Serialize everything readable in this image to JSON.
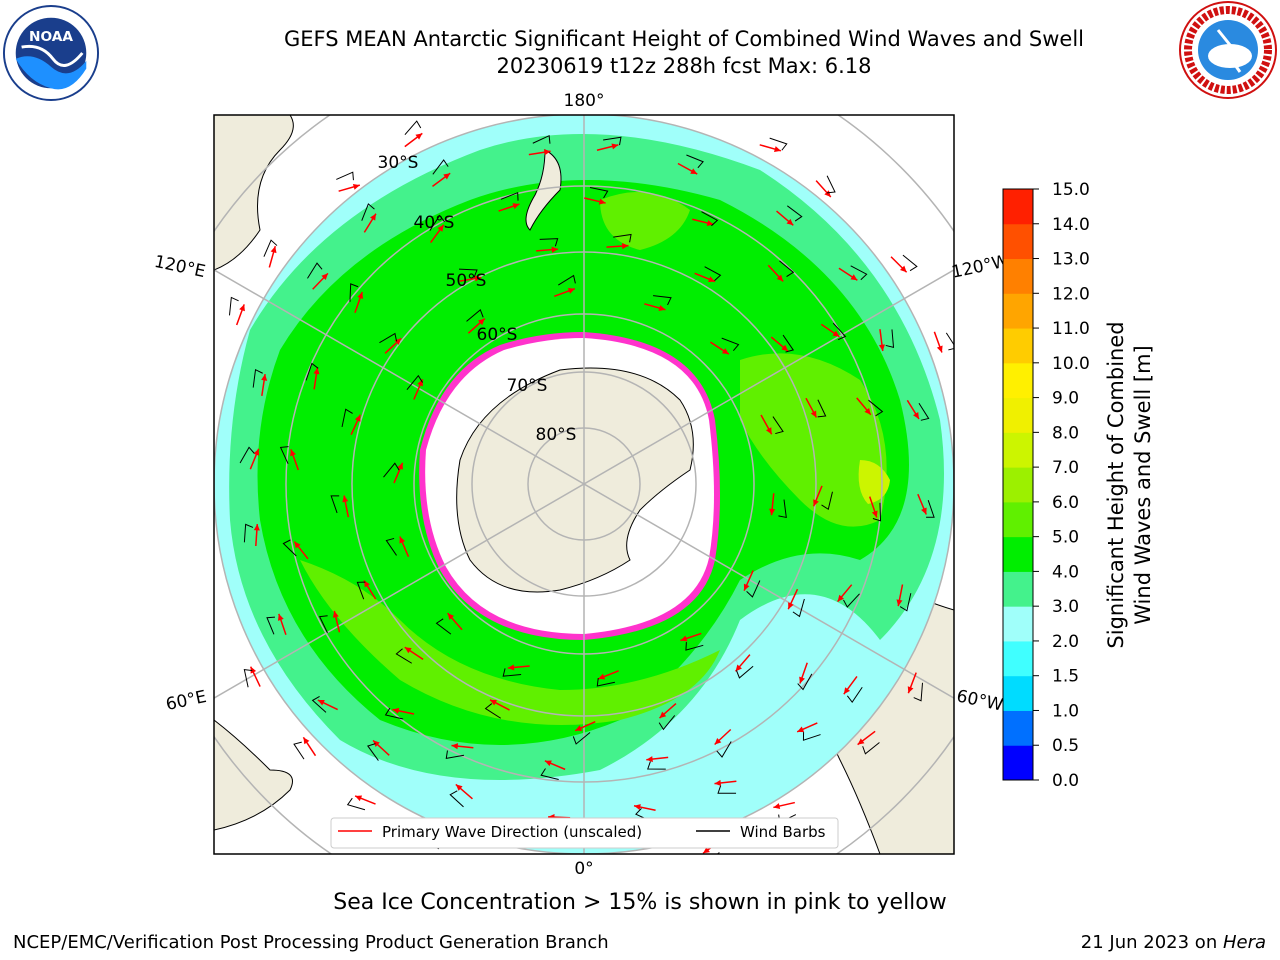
{
  "header": {
    "title_line1": "GEFS MEAN Antarctic Significant Height of Combined Wind Waves and Swell",
    "title_line2": "20230619 t12z 288h fcst   Max: 6.18"
  },
  "logos": {
    "left": "noaa-logo",
    "left_text": "NOAA",
    "left_ring_text": "NATIONAL OCEANIC AND ATMOSPHERIC ADMINISTRATION · U.S. DEPARTMENT OF COMMERCE",
    "right": "nws-logo",
    "right_ring_text": "NATIONAL WEATHER SERVICE"
  },
  "map": {
    "projection": "south polar stereographic",
    "longitude_labels": {
      "top": "180°",
      "bottom": "0°",
      "upper_left": "120°E",
      "upper_right": "120°W",
      "lower_left": "60°E",
      "lower_right": "60°W"
    },
    "latitude_labels": [
      "30°S",
      "40°S",
      "50°S",
      "60°S",
      "70°S",
      "80°S"
    ],
    "colors": {
      "land": "#efecdc",
      "ice": "#ffffff",
      "ocean_4_5": "#00ee00",
      "ocean_3_4": "#44f28c",
      "ocean_2_3": "#a0fffa",
      "ocean_5_6": "#60f000",
      "grid": "#b4b4b4",
      "arrow": "#ff0000",
      "barb": "#000000",
      "sea_ice_pink": "#ff33cc",
      "sea_ice_yellow": "#ffcc33"
    }
  },
  "legend": {
    "primary_wave_label": "Primary Wave Direction (unscaled)",
    "wind_barb_label": "Wind Barbs"
  },
  "colorbar": {
    "label_line1": "Significant Height of Combined",
    "label_line2": "Wind Waves and Swell [m]",
    "ticks": [
      "0.0",
      "0.5",
      "1.0",
      "1.5",
      "2.0",
      "3.0",
      "4.0",
      "5.0",
      "6.0",
      "7.0",
      "8.0",
      "9.0",
      "10.0",
      "11.0",
      "12.0",
      "13.0",
      "14.0",
      "15.0"
    ],
    "colors": [
      "#0000ff",
      "#0070ff",
      "#00dcff",
      "#40ffff",
      "#a0fffa",
      "#44f28c",
      "#00ee00",
      "#60f000",
      "#9cf000",
      "#ccf500",
      "#f0f000",
      "#fff000",
      "#ffcc00",
      "#ffa500",
      "#ff8000",
      "#ff5000",
      "#ff2000"
    ]
  },
  "subtitle": "Sea Ice Concentration > 15% is shown in pink to yellow",
  "footer": {
    "left": "NCEP/EMC/Verification Post Processing Product Generation Branch",
    "right_prefix": "21 Jun 2023 on ",
    "right_host": "Hera"
  }
}
